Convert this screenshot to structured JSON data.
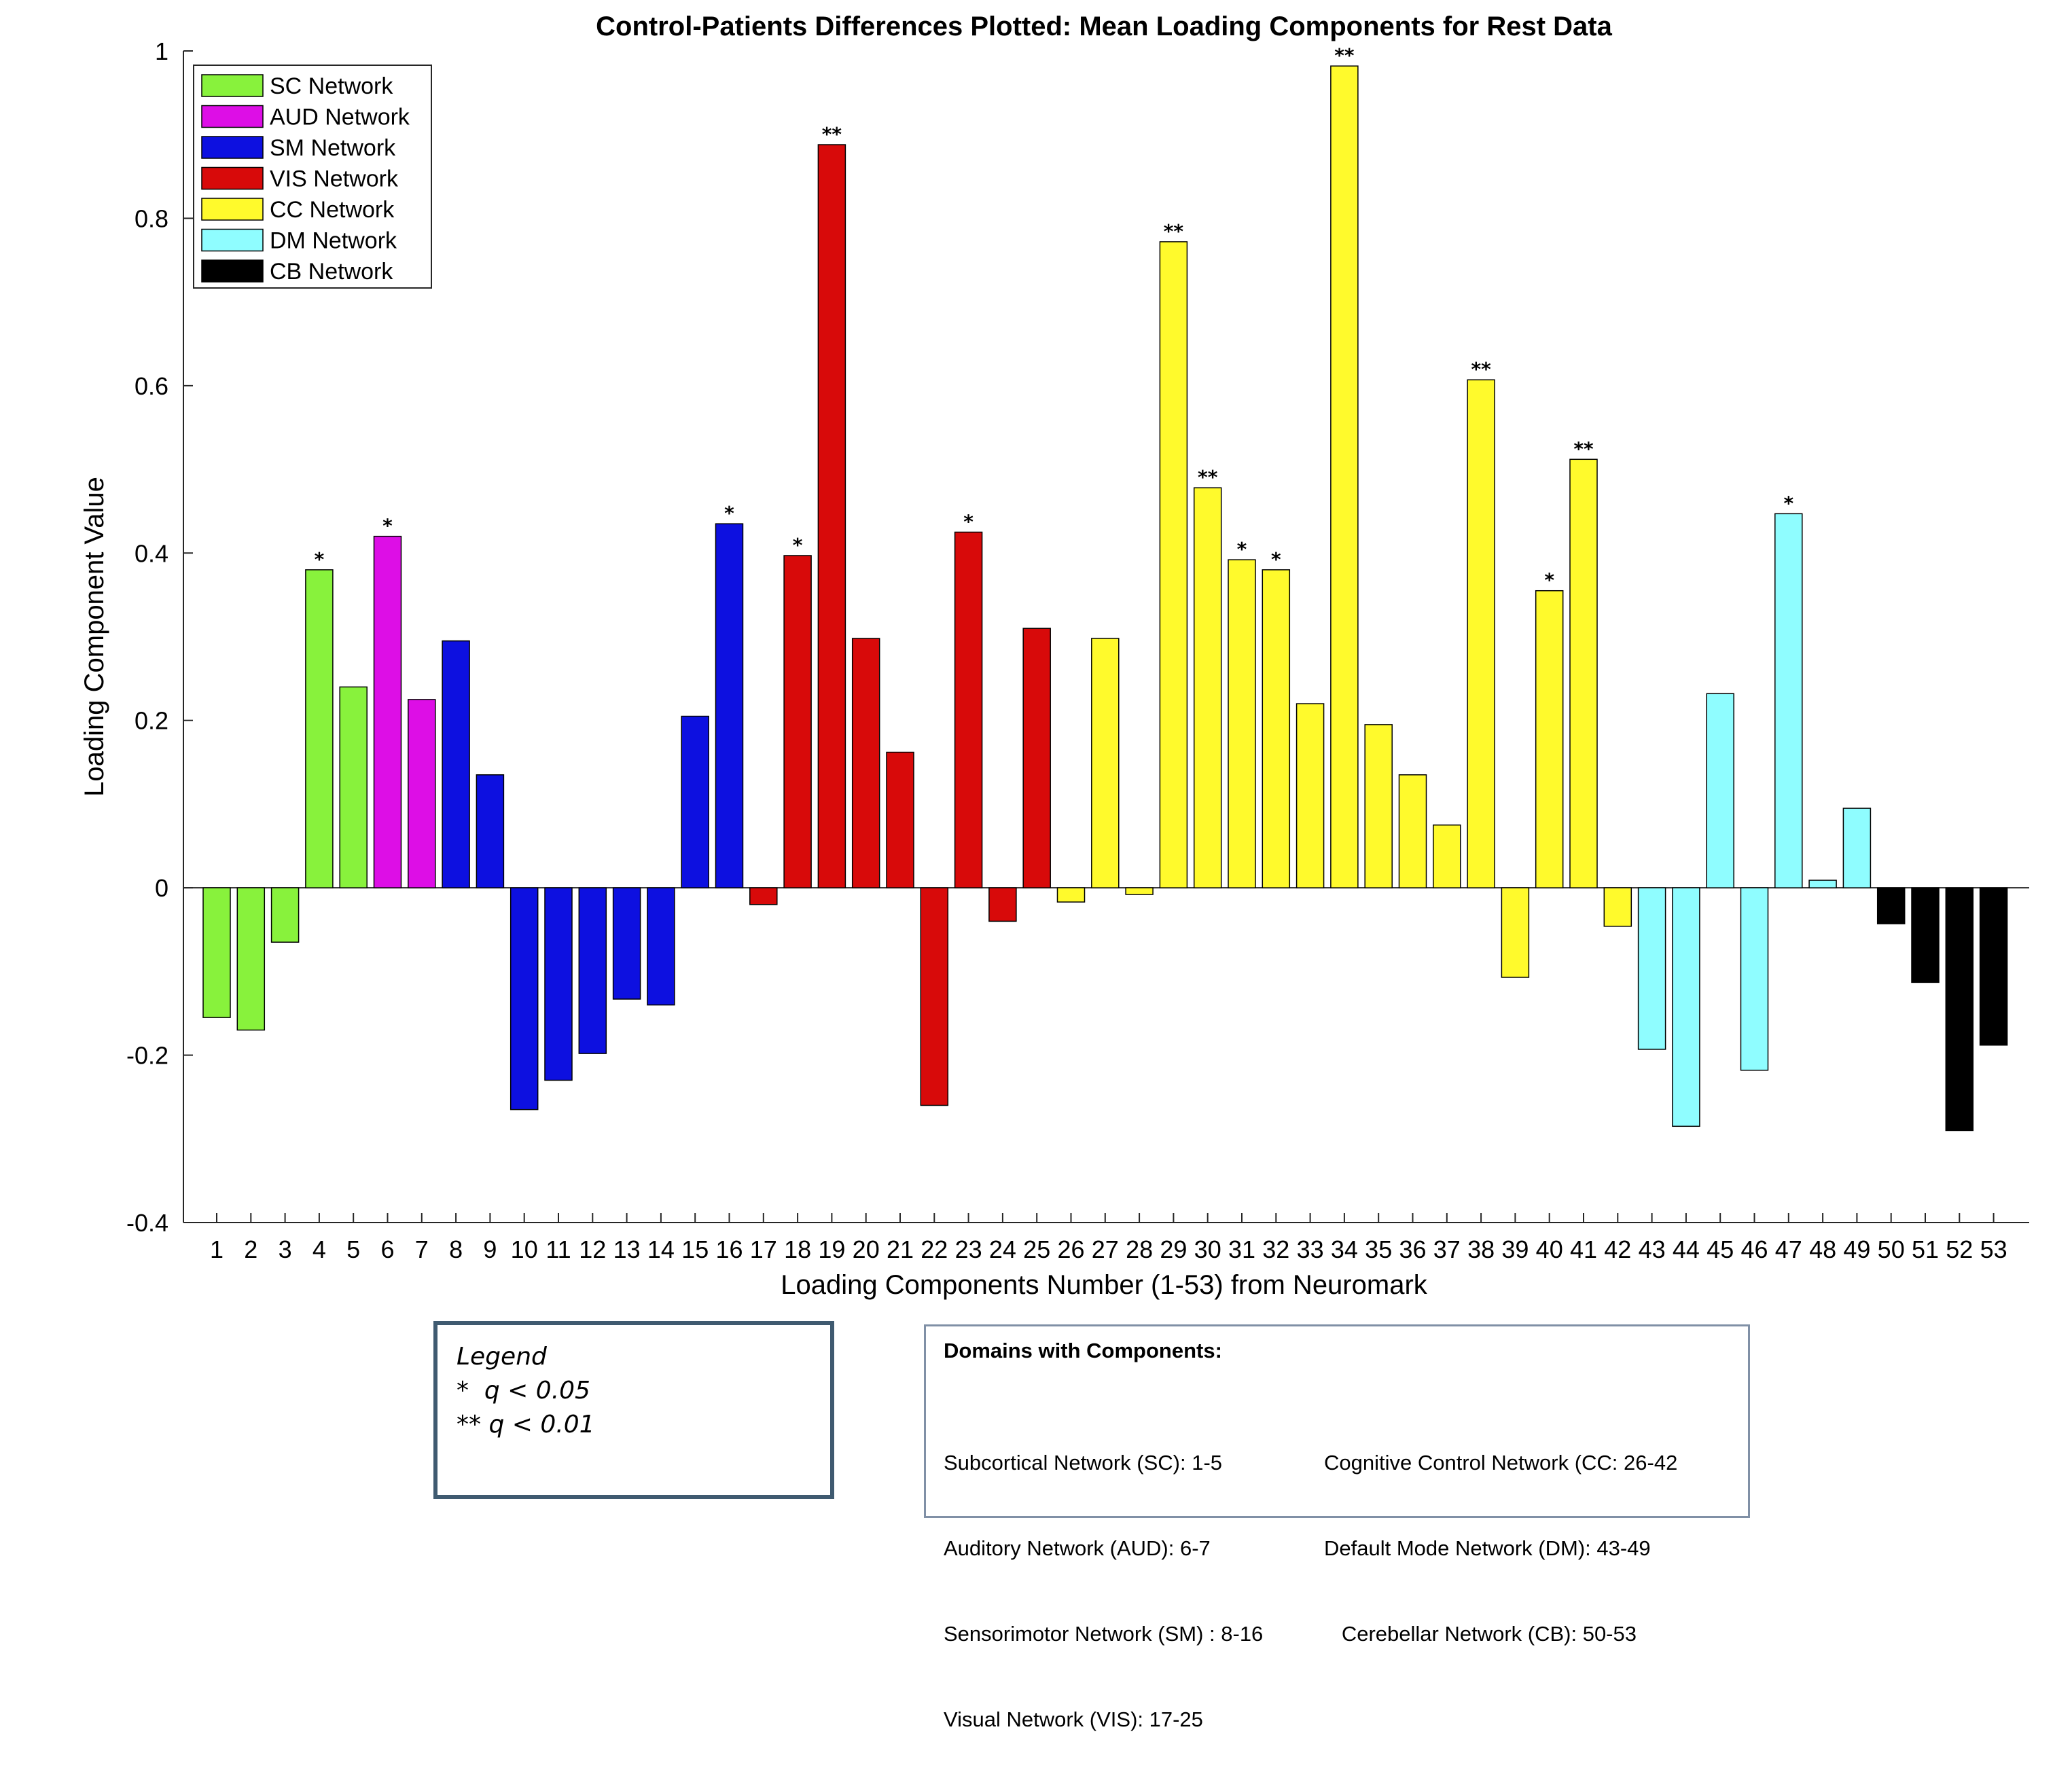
{
  "chart_data": {
    "type": "bar",
    "title": "Control-Patients Differences Plotted: Mean Loading Components for Rest Data",
    "xlabel": "Loading Components Number (1-53) from Neuromark",
    "ylabel": "Loading Component Value",
    "ylim": [
      -0.4,
      1
    ],
    "yticks": [
      -0.4,
      -0.2,
      0,
      0.2,
      0.4,
      0.6,
      0.8,
      1
    ],
    "ytick_labels": [
      "-0.4",
      "-0.2",
      "0",
      "0.2",
      "0.4",
      "0.6",
      "0.8",
      "1"
    ],
    "legend_placement": "top-left",
    "grid": false,
    "categories": [
      "1",
      "2",
      "3",
      "4",
      "5",
      "6",
      "7",
      "8",
      "9",
      "10",
      "11",
      "12",
      "13",
      "14",
      "15",
      "16",
      "17",
      "18",
      "19",
      "20",
      "21",
      "22",
      "23",
      "24",
      "25",
      "26",
      "27",
      "28",
      "29",
      "30",
      "31",
      "32",
      "33",
      "34",
      "35",
      "36",
      "37",
      "38",
      "39",
      "40",
      "41",
      "42",
      "43",
      "44",
      "45",
      "46",
      "47",
      "48",
      "49",
      "50",
      "51",
      "52",
      "53"
    ],
    "values": [
      -0.155,
      -0.17,
      -0.065,
      0.38,
      0.24,
      0.42,
      0.225,
      0.295,
      0.135,
      -0.265,
      -0.23,
      -0.198,
      -0.133,
      -0.14,
      0.205,
      0.435,
      -0.02,
      0.397,
      0.888,
      0.298,
      0.162,
      -0.26,
      0.425,
      -0.04,
      0.31,
      -0.017,
      0.298,
      -0.008,
      0.772,
      0.478,
      0.392,
      0.38,
      0.22,
      0.982,
      0.195,
      0.135,
      0.075,
      0.607,
      -0.107,
      0.355,
      0.512,
      -0.046,
      -0.193,
      -0.285,
      0.232,
      -0.218,
      0.447,
      0.009,
      0.095,
      -0.043,
      -0.113,
      -0.29,
      -0.188
    ],
    "significance": [
      "",
      "",
      "",
      "*",
      "",
      "*",
      "",
      "",
      "",
      "",
      "",
      "",
      "",
      "",
      "",
      "*",
      "",
      "*",
      "**",
      "",
      "",
      "",
      "*",
      "",
      "",
      "",
      "",
      "",
      "**",
      "**",
      "*",
      "*",
      "",
      "**",
      "",
      "",
      "",
      "**",
      "",
      "*",
      "**",
      "",
      "",
      "",
      "",
      "",
      "*",
      "",
      "",
      "",
      "",
      "",
      ""
    ],
    "networks": [
      {
        "name": "SC Network",
        "color": "#88f23c",
        "from": 1,
        "to": 5
      },
      {
        "name": "AUD Network",
        "color": "#dd0ee6",
        "from": 6,
        "to": 7
      },
      {
        "name": "SM Network",
        "color": "#0d10e0",
        "from": 8,
        "to": 16
      },
      {
        "name": "VIS Network",
        "color": "#d80a0a",
        "from": 17,
        "to": 25
      },
      {
        "name": "CC Network",
        "color": "#fffa2c",
        "from": 26,
        "to": 42
      },
      {
        "name": "DM Network",
        "color": "#8ffdff",
        "from": 43,
        "to": 49
      },
      {
        "name": "CB Network",
        "color": "#000000",
        "from": 50,
        "to": 53
      }
    ]
  },
  "significance_legend": {
    "title": "Legend",
    "lines": [
      "*  q < 0.05",
      "** q < 0.01"
    ]
  },
  "domains": {
    "title": "Domains with Components:",
    "left": [
      "Subcortical Network (SC): 1-5",
      "Auditory Network (AUD): 6-7",
      "Sensorimotor Network (SM) : 8-16",
      "Visual Network (VIS): 17-25"
    ],
    "right": [
      "Cognitive Control Network (CC: 26-42",
      "Default Mode Network (DM): 43-49",
      "   Cerebellar Network (CB): 50-53"
    ]
  }
}
